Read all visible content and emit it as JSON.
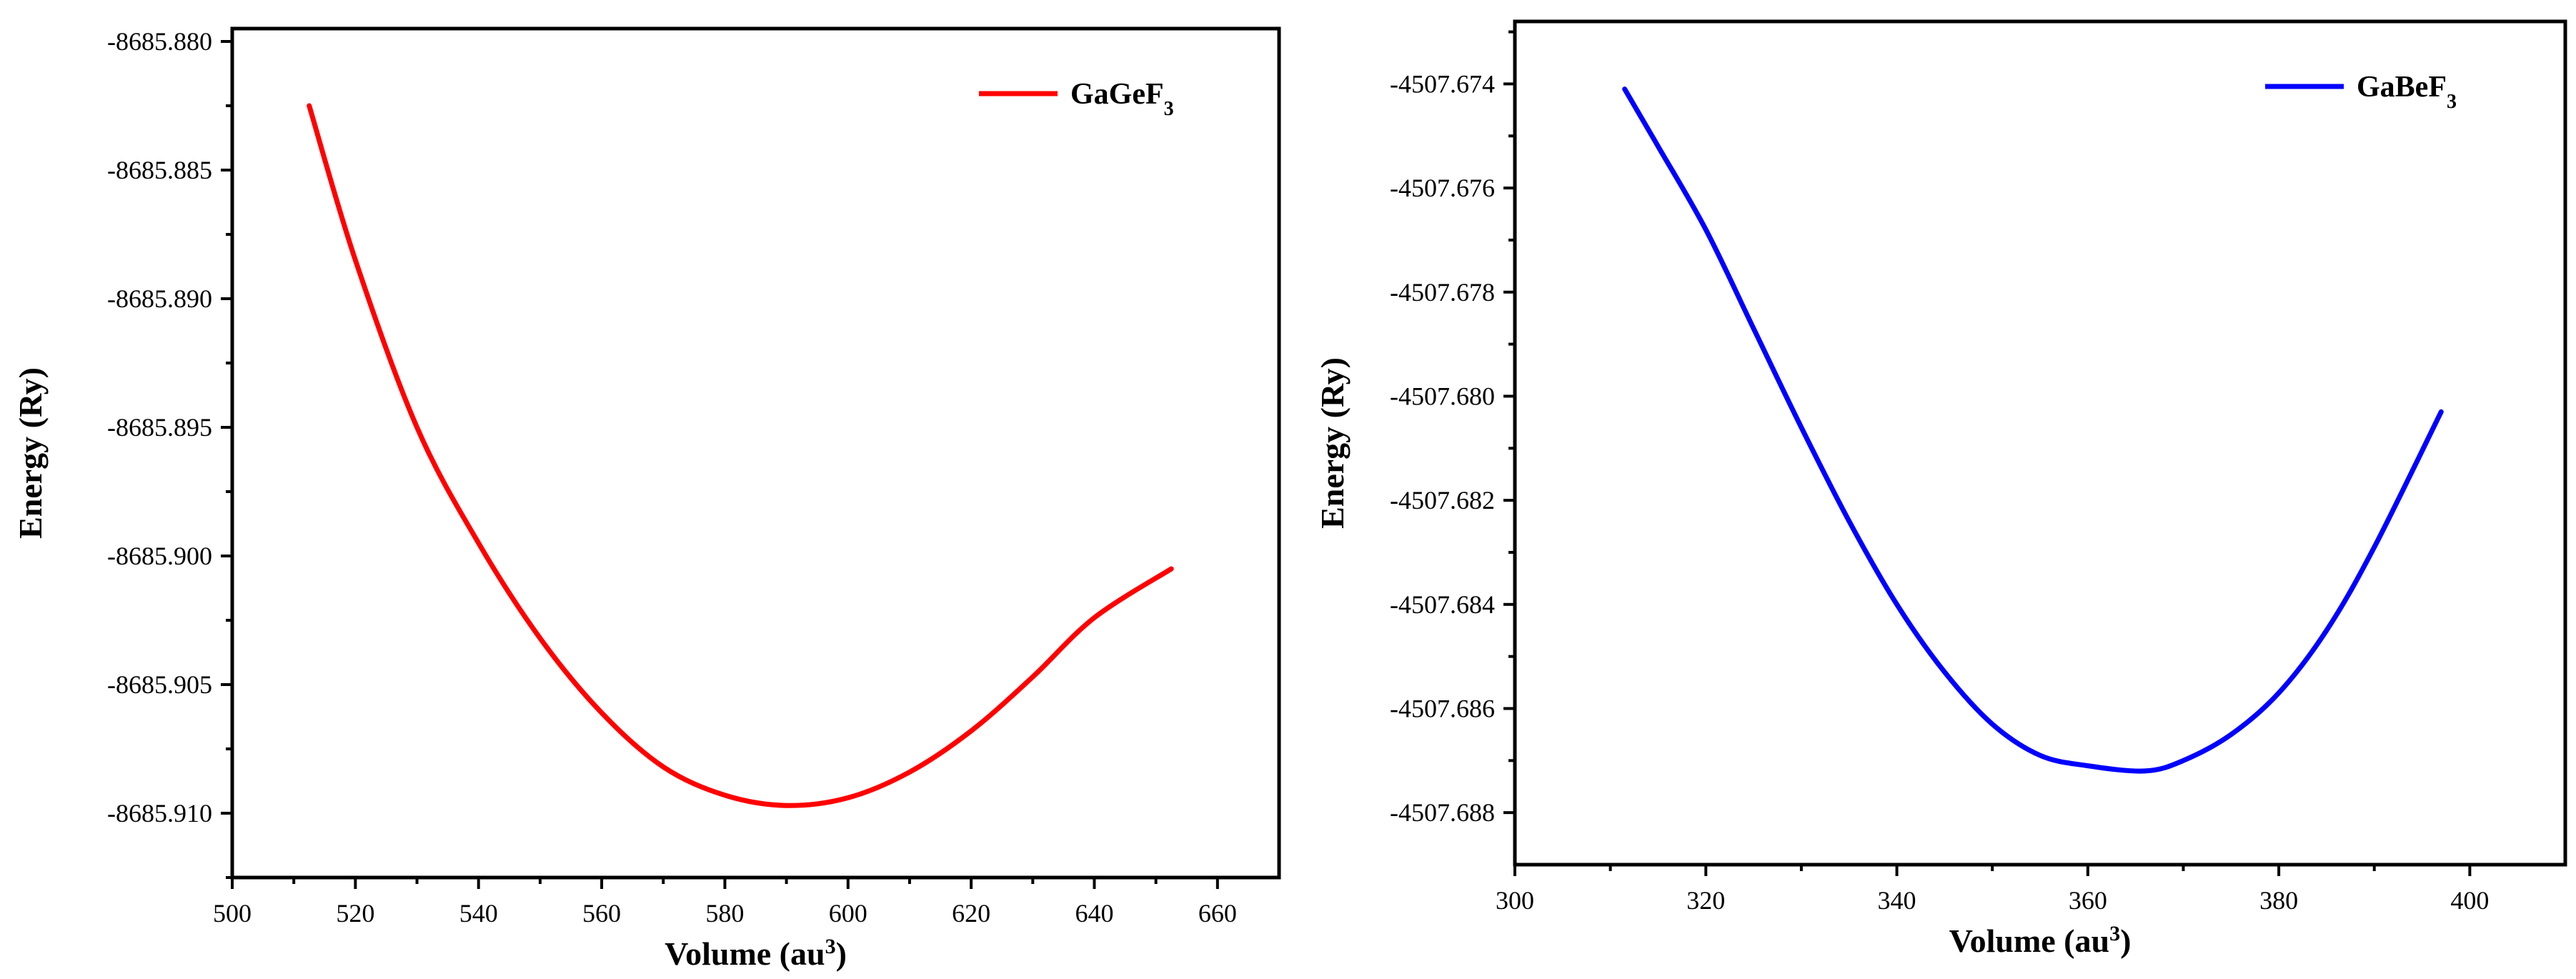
{
  "chart_data": [
    {
      "type": "line",
      "title": "",
      "xlabel": "Volume (au",
      "xlabel_sup": "3",
      "xlabel_suffix": ")",
      "ylabel": "Energy (Ry)",
      "xlim": [
        500,
        670
      ],
      "ylim": [
        -8685.9125,
        -8685.8795
      ],
      "xticks": [
        500,
        520,
        540,
        560,
        580,
        600,
        620,
        640,
        660
      ],
      "xtick_labels": [
        "500",
        "520",
        "540",
        "560",
        "580",
        "600",
        "620",
        "640",
        "660"
      ],
      "yticks": [
        -8685.91,
        -8685.905,
        -8685.9,
        -8685.895,
        -8685.89,
        -8685.885,
        -8685.88
      ],
      "ytick_labels": [
        "-8685.910",
        "-8685.905",
        "-8685.900",
        "-8685.895",
        "-8685.890",
        "-8685.885",
        "-8685.880"
      ],
      "legend": {
        "name": "GaGeF",
        "sub": "3",
        "position": "top-right"
      },
      "color": "#ff0000",
      "series": [
        {
          "name": "GaGeF3",
          "x": [
            512.5,
            520,
            530,
            540,
            550,
            560,
            570,
            580,
            590,
            600,
            610,
            620,
            630,
            640,
            652.5
          ],
          "values": [
            -8685.8825,
            -8685.8885,
            -8685.895,
            -8685.8995,
            -8685.9032,
            -8685.9061,
            -8685.9082,
            -8685.9093,
            -8685.9097,
            -8685.9094,
            -8685.9084,
            -8685.9068,
            -8685.9047,
            -8685.9024,
            -8685.9005
          ]
        }
      ]
    },
    {
      "type": "line",
      "title": "",
      "xlabel": "Volume (au",
      "xlabel_sup": "3",
      "xlabel_suffix": ")",
      "ylabel": "Energy (Ry)",
      "xlim": [
        300,
        410
      ],
      "ylim": [
        -4507.689,
        -4507.6728
      ],
      "xticks": [
        300,
        320,
        340,
        360,
        380,
        400
      ],
      "xtick_labels": [
        "300",
        "320",
        "340",
        "360",
        "380",
        "400"
      ],
      "yticks": [
        -4507.688,
        -4507.686,
        -4507.684,
        -4507.682,
        -4507.68,
        -4507.678,
        -4507.676,
        -4507.674
      ],
      "ytick_labels": [
        "-4507.688",
        "-4507.686",
        "-4507.684",
        "-4507.682",
        "-4507.680",
        "-4507.678",
        "-4507.676",
        "-4507.674"
      ],
      "legend": {
        "name": "GaBeF",
        "sub": "3",
        "position": "top-right"
      },
      "color": "#0000ff",
      "series": [
        {
          "name": "GaBeF3",
          "x": [
            311.5,
            315,
            320,
            325,
            330,
            335,
            340,
            345,
            350,
            355,
            360,
            366,
            370,
            375,
            380,
            385,
            390,
            397
          ],
          "values": [
            -4507.6741,
            -4507.6752,
            -4507.6768,
            -4507.6787,
            -4507.6806,
            -4507.6824,
            -4507.684,
            -4507.6853,
            -4507.6863,
            -4507.6869,
            -4507.6871,
            -4507.6872,
            -4507.687,
            -4507.6865,
            -4507.6857,
            -4507.6845,
            -4507.6829,
            -4507.6803
          ]
        }
      ]
    }
  ]
}
